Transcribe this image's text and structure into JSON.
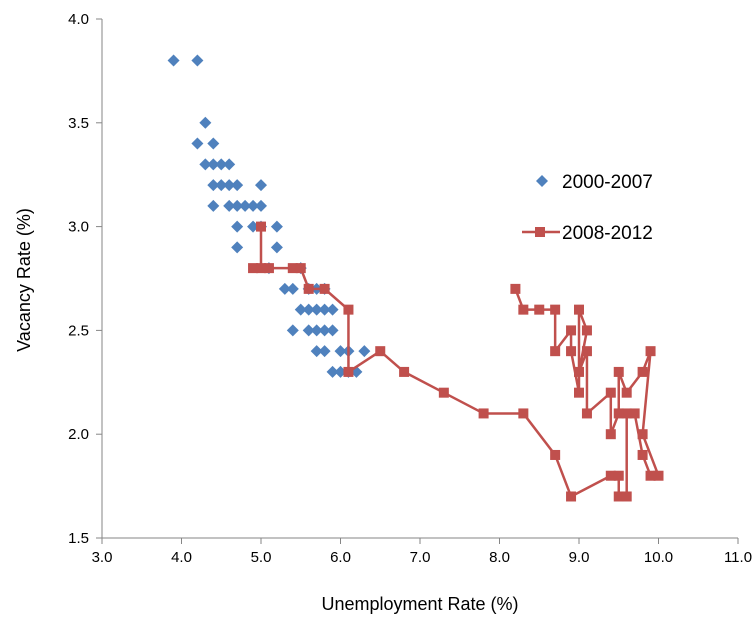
{
  "chart_data": {
    "type": "scatter",
    "xlabel": "Unemployment Rate (%)",
    "ylabel": "Vacancy Rate (%)",
    "xlim": [
      3.0,
      11.0
    ],
    "ylim": [
      1.5,
      4.0
    ],
    "x_ticks": [
      "3.0",
      "4.0",
      "5.0",
      "6.0",
      "7.0",
      "8.0",
      "9.0",
      "10.0",
      "11.0"
    ],
    "y_ticks": [
      "1.5",
      "2.0",
      "2.5",
      "3.0",
      "3.5",
      "4.0"
    ],
    "grid": false,
    "legend_position": "right",
    "series": [
      {
        "name": "2000-2007",
        "marker": "diamond",
        "line": false,
        "color": "#4F81BD",
        "points": [
          [
            3.9,
            3.8
          ],
          [
            4.2,
            3.8
          ],
          [
            4.3,
            3.5
          ],
          [
            4.2,
            3.4
          ],
          [
            4.4,
            3.4
          ],
          [
            4.3,
            3.3
          ],
          [
            4.4,
            3.3
          ],
          [
            4.5,
            3.3
          ],
          [
            4.6,
            3.3
          ],
          [
            4.4,
            3.2
          ],
          [
            4.5,
            3.2
          ],
          [
            4.6,
            3.2
          ],
          [
            4.7,
            3.2
          ],
          [
            5.0,
            3.2
          ],
          [
            4.4,
            3.1
          ],
          [
            4.6,
            3.1
          ],
          [
            4.7,
            3.1
          ],
          [
            4.8,
            3.1
          ],
          [
            4.9,
            3.1
          ],
          [
            5.0,
            3.1
          ],
          [
            4.7,
            3.0
          ],
          [
            4.9,
            3.0
          ],
          [
            5.0,
            3.0
          ],
          [
            5.2,
            3.0
          ],
          [
            4.7,
            2.9
          ],
          [
            5.2,
            2.9
          ],
          [
            5.1,
            2.8
          ],
          [
            5.5,
            2.8
          ],
          [
            5.3,
            2.7
          ],
          [
            5.4,
            2.7
          ],
          [
            5.6,
            2.7
          ],
          [
            5.7,
            2.7
          ],
          [
            5.8,
            2.7
          ],
          [
            5.5,
            2.6
          ],
          [
            5.6,
            2.6
          ],
          [
            5.7,
            2.6
          ],
          [
            5.8,
            2.6
          ],
          [
            5.9,
            2.6
          ],
          [
            5.4,
            2.5
          ],
          [
            5.6,
            2.5
          ],
          [
            5.7,
            2.5
          ],
          [
            5.8,
            2.5
          ],
          [
            5.9,
            2.5
          ],
          [
            5.7,
            2.4
          ],
          [
            5.8,
            2.4
          ],
          [
            6.0,
            2.4
          ],
          [
            6.1,
            2.4
          ],
          [
            6.3,
            2.4
          ],
          [
            5.9,
            2.3
          ],
          [
            6.0,
            2.3
          ],
          [
            6.1,
            2.3
          ],
          [
            6.2,
            2.3
          ]
        ]
      },
      {
        "name": "2008-2012",
        "marker": "square",
        "line": true,
        "color": "#C0504D",
        "points": [
          [
            5.0,
            3.0
          ],
          [
            5.0,
            2.8
          ],
          [
            4.9,
            2.8
          ],
          [
            5.1,
            2.8
          ],
          [
            5.4,
            2.8
          ],
          [
            5.5,
            2.8
          ],
          [
            5.6,
            2.7
          ],
          [
            5.8,
            2.7
          ],
          [
            6.1,
            2.6
          ],
          [
            6.1,
            2.3
          ],
          [
            6.5,
            2.4
          ],
          [
            6.8,
            2.3
          ],
          [
            7.3,
            2.2
          ],
          [
            7.8,
            2.1
          ],
          [
            8.3,
            2.1
          ],
          [
            8.7,
            1.9
          ],
          [
            8.9,
            1.7
          ],
          [
            9.4,
            1.8
          ],
          [
            9.5,
            1.8
          ],
          [
            9.5,
            1.7
          ],
          [
            9.6,
            1.7
          ],
          [
            9.6,
            2.1
          ],
          [
            9.7,
            2.1
          ],
          [
            9.8,
            1.9
          ],
          [
            9.9,
            1.8
          ],
          [
            10.0,
            1.8
          ],
          [
            9.8,
            2.0
          ],
          [
            9.9,
            2.4
          ],
          [
            9.8,
            2.3
          ],
          [
            9.6,
            2.2
          ],
          [
            9.5,
            2.3
          ],
          [
            9.5,
            2.1
          ],
          [
            9.4,
            2.0
          ],
          [
            9.4,
            2.2
          ],
          [
            9.1,
            2.1
          ],
          [
            9.1,
            2.4
          ],
          [
            9.0,
            2.3
          ],
          [
            9.1,
            2.5
          ],
          [
            9.0,
            2.6
          ],
          [
            9.0,
            2.2
          ],
          [
            8.9,
            2.4
          ],
          [
            8.9,
            2.5
          ],
          [
            8.7,
            2.4
          ],
          [
            8.7,
            2.6
          ],
          [
            8.5,
            2.6
          ],
          [
            8.3,
            2.6
          ],
          [
            8.2,
            2.7
          ]
        ]
      }
    ]
  }
}
